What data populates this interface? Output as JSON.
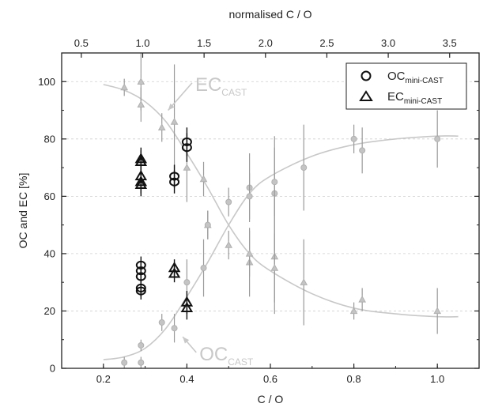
{
  "chart_data": {
    "type": "scatter",
    "xlabel": "C / O",
    "ylabel": "OC and EC [%]",
    "top_xlabel": "normalised C / O",
    "xlim": [
      0.1,
      1.1
    ],
    "ylim": [
      0,
      110
    ],
    "x_ticks": [
      0.2,
      0.4,
      0.6,
      0.8,
      1.0
    ],
    "x_tick_labels": [
      "0.2",
      "0.4",
      "0.6",
      "0.8",
      "1.0"
    ],
    "y_ticks": [
      0,
      20,
      40,
      60,
      80,
      100
    ],
    "y_tick_labels": [
      "0",
      "20",
      "40",
      "60",
      "80",
      "100"
    ],
    "top_ticks": [
      0.5,
      1.0,
      1.5,
      2.0,
      2.5,
      3.0,
      3.5
    ],
    "top_tick_labels": [
      "0.5",
      "1.0",
      "1.5",
      "2.0",
      "2.5",
      "3.0",
      "3.5"
    ],
    "top_axis_scale": 3.4,
    "legend": {
      "position": "top-right",
      "entries": [
        {
          "name": "OC",
          "sub": "mini-CAST",
          "marker": "circle"
        },
        {
          "name": "EC",
          "sub": "mini-CAST",
          "marker": "triangle"
        }
      ]
    },
    "annotations": [
      {
        "text": "EC",
        "sub": "CAST",
        "x": 0.42,
        "y": 99,
        "arrow_to": [
          0.355,
          90
        ]
      },
      {
        "text": "OC",
        "sub": "CAST",
        "x": 0.43,
        "y": 5,
        "arrow_to": [
          0.39,
          11
        ]
      }
    ],
    "fit_curves": [
      {
        "name": "EC_CAST fit",
        "x": [
          0.2,
          0.25,
          0.3,
          0.35,
          0.4,
          0.45,
          0.5,
          0.55,
          0.6,
          0.7,
          0.8,
          0.9,
          1.0,
          1.05
        ],
        "y": [
          99,
          97,
          93,
          86,
          75,
          63,
          50,
          40,
          34,
          26,
          21,
          19,
          18,
          18
        ]
      },
      {
        "name": "OC_CAST fit",
        "x": [
          0.2,
          0.25,
          0.3,
          0.35,
          0.4,
          0.45,
          0.5,
          0.55,
          0.6,
          0.7,
          0.8,
          0.9,
          1.0,
          1.05
        ],
        "y": [
          3,
          4,
          7,
          14,
          25,
          37,
          50,
          61,
          67,
          74,
          78,
          80,
          81,
          81
        ]
      }
    ],
    "series": [
      {
        "name": "EC_CAST",
        "marker": "triangle-small",
        "points": [
          {
            "x": 0.25,
            "y": 98,
            "err": 3
          },
          {
            "x": 0.29,
            "y": 100,
            "err": 10
          },
          {
            "x": 0.29,
            "y": 92,
            "err": 6
          },
          {
            "x": 0.34,
            "y": 84,
            "err": 5
          },
          {
            "x": 0.37,
            "y": 86,
            "err": 20
          },
          {
            "x": 0.4,
            "y": 70,
            "err": 12
          },
          {
            "x": 0.44,
            "y": 66,
            "err": 6
          },
          {
            "x": 0.45,
            "y": 50,
            "err": 5
          },
          {
            "x": 0.5,
            "y": 43,
            "err": 5
          },
          {
            "x": 0.55,
            "y": 37,
            "err": 12
          },
          {
            "x": 0.55,
            "y": 40,
            "err": 8
          },
          {
            "x": 0.61,
            "y": 39,
            "err": 20
          },
          {
            "x": 0.61,
            "y": 35,
            "err": 12
          },
          {
            "x": 0.68,
            "y": 30,
            "err": 15
          },
          {
            "x": 0.8,
            "y": 20,
            "err": 3
          },
          {
            "x": 0.82,
            "y": 24,
            "err": 4
          },
          {
            "x": 1.0,
            "y": 20,
            "err": 8
          }
        ]
      },
      {
        "name": "OC_CAST",
        "marker": "circle-small",
        "points": [
          {
            "x": 0.25,
            "y": 2,
            "err": 2
          },
          {
            "x": 0.29,
            "y": 8,
            "err": 2
          },
          {
            "x": 0.29,
            "y": 2,
            "err": 2
          },
          {
            "x": 0.34,
            "y": 16,
            "err": 3
          },
          {
            "x": 0.37,
            "y": 14,
            "err": 5
          },
          {
            "x": 0.4,
            "y": 30,
            "err": 8
          },
          {
            "x": 0.44,
            "y": 35,
            "err": 10
          },
          {
            "x": 0.45,
            "y": 50,
            "err": 5
          },
          {
            "x": 0.5,
            "y": 58,
            "err": 5
          },
          {
            "x": 0.55,
            "y": 63,
            "err": 12
          },
          {
            "x": 0.55,
            "y": 60,
            "err": 8
          },
          {
            "x": 0.61,
            "y": 61,
            "err": 20
          },
          {
            "x": 0.61,
            "y": 65,
            "err": 12
          },
          {
            "x": 0.68,
            "y": 70,
            "err": 15
          },
          {
            "x": 0.8,
            "y": 80,
            "err": 5
          },
          {
            "x": 0.82,
            "y": 76,
            "err": 8
          },
          {
            "x": 1.0,
            "y": 80,
            "err": 10
          }
        ]
      },
      {
        "name": "OC_mini-CAST",
        "marker": "circle",
        "points": [
          {
            "x": 0.29,
            "y": 36,
            "err": 3
          },
          {
            "x": 0.29,
            "y": 34,
            "err": 3
          },
          {
            "x": 0.29,
            "y": 32,
            "err": 3
          },
          {
            "x": 0.29,
            "y": 28,
            "err": 3
          },
          {
            "x": 0.29,
            "y": 27,
            "err": 3
          },
          {
            "x": 0.37,
            "y": 67,
            "err": 4
          },
          {
            "x": 0.37,
            "y": 65,
            "err": 4
          },
          {
            "x": 0.4,
            "y": 79,
            "err": 5
          },
          {
            "x": 0.4,
            "y": 77,
            "err": 5
          }
        ]
      },
      {
        "name": "EC_mini-CAST",
        "marker": "triangle",
        "points": [
          {
            "x": 0.29,
            "y": 73,
            "err": 4
          },
          {
            "x": 0.29,
            "y": 72,
            "err": 4
          },
          {
            "x": 0.29,
            "y": 67,
            "err": 4
          },
          {
            "x": 0.29,
            "y": 65,
            "err": 4
          },
          {
            "x": 0.29,
            "y": 64,
            "err": 4
          },
          {
            "x": 0.37,
            "y": 35,
            "err": 3
          },
          {
            "x": 0.37,
            "y": 33,
            "err": 3
          },
          {
            "x": 0.4,
            "y": 23,
            "err": 4
          },
          {
            "x": 0.4,
            "y": 21,
            "err": 4
          }
        ]
      }
    ]
  }
}
